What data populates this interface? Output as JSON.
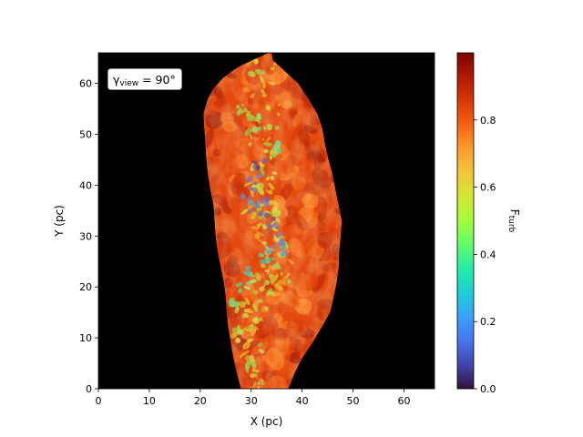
{
  "chart_data": {
    "type": "heatmap",
    "title": "",
    "xlabel": "X (pc)",
    "ylabel": "Y (pc)",
    "xlim": [
      0,
      66
    ],
    "ylim": [
      0,
      66
    ],
    "x_ticks": [
      0,
      10,
      20,
      30,
      40,
      50,
      60
    ],
    "y_ticks": [
      0,
      10,
      20,
      30,
      40,
      50,
      60
    ],
    "background_color": "#000000",
    "annotation": {
      "prefix": "γ",
      "subscript": "view",
      "text": " = 90°",
      "placement": "top-left"
    },
    "colorbar": {
      "label": "F",
      "label_subscript": "turb",
      "range": [
        0.0,
        1.0
      ],
      "ticks": [
        0.0,
        0.2,
        0.4,
        0.6,
        0.8
      ],
      "tick_labels": [
        "0.0",
        "0.2",
        "0.4",
        "0.6",
        "0.8"
      ],
      "colormap": "turbo",
      "stops": [
        "#30123b",
        "#4145ab",
        "#4675ed",
        "#39a2fc",
        "#1bcfd4",
        "#24eca6",
        "#61fc6c",
        "#a4fc3b",
        "#d1e834",
        "#f3c63a",
        "#fe9b2d",
        "#f36315",
        "#d93806",
        "#b11901",
        "#7a0402"
      ]
    },
    "cloud": {
      "left_edge": [
        [
          28.0,
          0
        ],
        [
          27.2,
          3
        ],
        [
          26.5,
          6
        ],
        [
          26.0,
          9
        ],
        [
          25.5,
          12
        ],
        [
          25.2,
          15
        ],
        [
          25.0,
          18
        ],
        [
          24.6,
          21
        ],
        [
          24.0,
          24
        ],
        [
          23.4,
          27
        ],
        [
          23.0,
          30
        ],
        [
          22.8,
          33
        ],
        [
          22.6,
          36
        ],
        [
          22.0,
          39
        ],
        [
          21.5,
          42
        ],
        [
          21.2,
          45
        ],
        [
          21.0,
          48
        ],
        [
          20.8,
          51
        ],
        [
          20.6,
          54
        ],
        [
          21.5,
          57
        ],
        [
          22.6,
          59
        ],
        [
          24.4,
          61
        ],
        [
          26.5,
          62.6
        ],
        [
          28.0,
          63.5
        ],
        [
          33.5,
          66
        ]
      ],
      "right_edge": [
        [
          37.3,
          0
        ],
        [
          38.5,
          3
        ],
        [
          40.0,
          6
        ],
        [
          42.0,
          9
        ],
        [
          43.8,
          12
        ],
        [
          45.5,
          15
        ],
        [
          46.2,
          18
        ],
        [
          46.8,
          21
        ],
        [
          47.2,
          24
        ],
        [
          47.3,
          27
        ],
        [
          47.6,
          30
        ],
        [
          47.8,
          33
        ],
        [
          47.2,
          36
        ],
        [
          46.6,
          39
        ],
        [
          46.0,
          42
        ],
        [
          45.2,
          45
        ],
        [
          44.5,
          48
        ],
        [
          44.0,
          51
        ],
        [
          43.0,
          54
        ],
        [
          41.2,
          57
        ],
        [
          39.2,
          60
        ],
        [
          36.5,
          62.5
        ],
        [
          34.3,
          64.5
        ],
        [
          34.0,
          66
        ]
      ],
      "ridge": [
        [
          33.5,
          66
        ],
        [
          33.0,
          60
        ],
        [
          32.5,
          54
        ],
        [
          32.0,
          49
        ],
        [
          32.3,
          44
        ],
        [
          31.5,
          40
        ],
        [
          31.2,
          37
        ],
        [
          32.2,
          34
        ],
        [
          33.4,
          31
        ],
        [
          34.5,
          28
        ],
        [
          35.5,
          25
        ],
        [
          34.6,
          22
        ],
        [
          33.0,
          20
        ],
        [
          31.0,
          18
        ],
        [
          29.0,
          15
        ],
        [
          28.5,
          12
        ],
        [
          29.5,
          8
        ],
        [
          31.0,
          4
        ],
        [
          32.5,
          0
        ]
      ],
      "low_turbulence_knots": [
        [
          31.5,
          44.0,
          0.08
        ],
        [
          30.8,
          41.5,
          0.12
        ],
        [
          29.5,
          38.5,
          0.15
        ],
        [
          32.0,
          37.0,
          0.14
        ],
        [
          31.0,
          35.5,
          0.18
        ],
        [
          33.5,
          33.0,
          0.1
        ],
        [
          34.3,
          31.0,
          0.13
        ],
        [
          35.0,
          29.5,
          0.16
        ],
        [
          34.0,
          27.5,
          0.22
        ],
        [
          36.5,
          27.0,
          0.26
        ],
        [
          33.0,
          25.5,
          0.3
        ],
        [
          30.0,
          23.0,
          0.34
        ],
        [
          28.5,
          20.0,
          0.38
        ],
        [
          26.5,
          17.0,
          0.4
        ],
        [
          34.5,
          47.0,
          0.42
        ],
        [
          30.5,
          52.0,
          0.45
        ],
        [
          28.5,
          55.0,
          0.48
        ]
      ]
    }
  }
}
